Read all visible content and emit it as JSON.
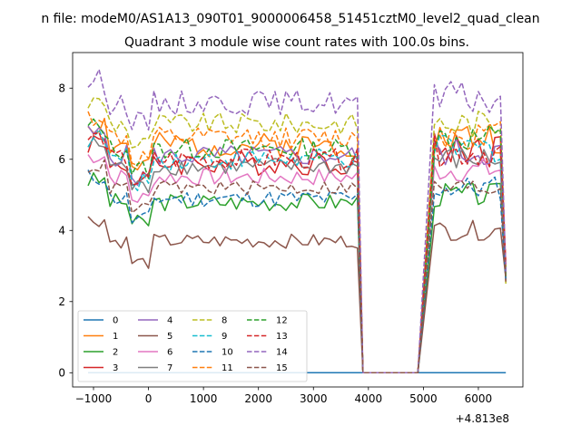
{
  "chart_data": {
    "type": "line",
    "suptitle": "n file: modeM0/AS1A13_090T01_9000006458_51451cztM0_level2_quad_clean",
    "title": "Quadrant 3 module wise count rates with 100.0s bins.",
    "xlabel": "",
    "ylabel": "",
    "x_offset_label": "+4.813e8",
    "xlim": [
      -1380,
      6810
    ],
    "ylim": [
      -0.4,
      9.0
    ],
    "xticks": [
      -1000,
      0,
      1000,
      2000,
      3000,
      4000,
      5000,
      6000
    ],
    "yticks": [
      0,
      2,
      4,
      6,
      8
    ],
    "grid": false,
    "legend_position": "lower-left",
    "legend_columns": 4,
    "x_start": -1100,
    "x_step": 100,
    "gap": {
      "last_before": 3800,
      "zero_from": 3900,
      "zero_to": 4900,
      "first_after": 5000
    },
    "series": [
      {
        "name": "0",
        "color": "#1f77b4",
        "style": "solid",
        "level": 0.0,
        "post": 0.0,
        "amp": 0.0,
        "seed": 1
      },
      {
        "name": "1",
        "color": "#ff7f0e",
        "style": "solid",
        "level": 6.4,
        "post": 6.6,
        "amp": 0.35,
        "seed": 2
      },
      {
        "name": "2",
        "color": "#2ca02c",
        "style": "solid",
        "level": 4.8,
        "post": 5.0,
        "amp": 0.25,
        "seed": 3
      },
      {
        "name": "3",
        "color": "#d62728",
        "style": "solid",
        "level": 5.9,
        "post": 6.3,
        "amp": 0.35,
        "seed": 4
      },
      {
        "name": "4",
        "color": "#9467bd",
        "style": "solid",
        "level": 6.1,
        "post": 6.2,
        "amp": 0.3,
        "seed": 5
      },
      {
        "name": "5",
        "color": "#8c564b",
        "style": "solid",
        "level": 3.7,
        "post": 4.0,
        "amp": 0.2,
        "seed": 6
      },
      {
        "name": "6",
        "color": "#e377c2",
        "style": "solid",
        "level": 5.5,
        "post": 5.7,
        "amp": 0.25,
        "seed": 7
      },
      {
        "name": "7",
        "color": "#7f7f7f",
        "style": "solid",
        "level": 5.8,
        "post": 6.0,
        "amp": 0.25,
        "seed": 8
      },
      {
        "name": "8",
        "color": "#bcbd22",
        "style": "dashed",
        "level": 7.0,
        "post": 7.0,
        "amp": 0.3,
        "seed": 9
      },
      {
        "name": "9",
        "color": "#17becf",
        "style": "dashed",
        "level": 6.0,
        "post": 6.3,
        "amp": 0.3,
        "seed": 10
      },
      {
        "name": "10",
        "color": "#1f77b4",
        "style": "dashed",
        "level": 4.9,
        "post": 5.2,
        "amp": 0.25,
        "seed": 11
      },
      {
        "name": "11",
        "color": "#ff7f0e",
        "style": "dashed",
        "level": 6.6,
        "post": 6.7,
        "amp": 0.3,
        "seed": 12
      },
      {
        "name": "12",
        "color": "#2ca02c",
        "style": "dashed",
        "level": 6.3,
        "post": 6.6,
        "amp": 0.3,
        "seed": 13
      },
      {
        "name": "13",
        "color": "#d62728",
        "style": "dashed",
        "level": 6.0,
        "post": 6.2,
        "amp": 0.3,
        "seed": 14
      },
      {
        "name": "14",
        "color": "#9467bd",
        "style": "dashed",
        "level": 7.6,
        "post": 7.7,
        "amp": 0.35,
        "seed": 15
      },
      {
        "name": "15",
        "color": "#8c564b",
        "style": "dashed",
        "level": 5.2,
        "post": 5.2,
        "amp": 0.2,
        "seed": 16
      }
    ]
  }
}
